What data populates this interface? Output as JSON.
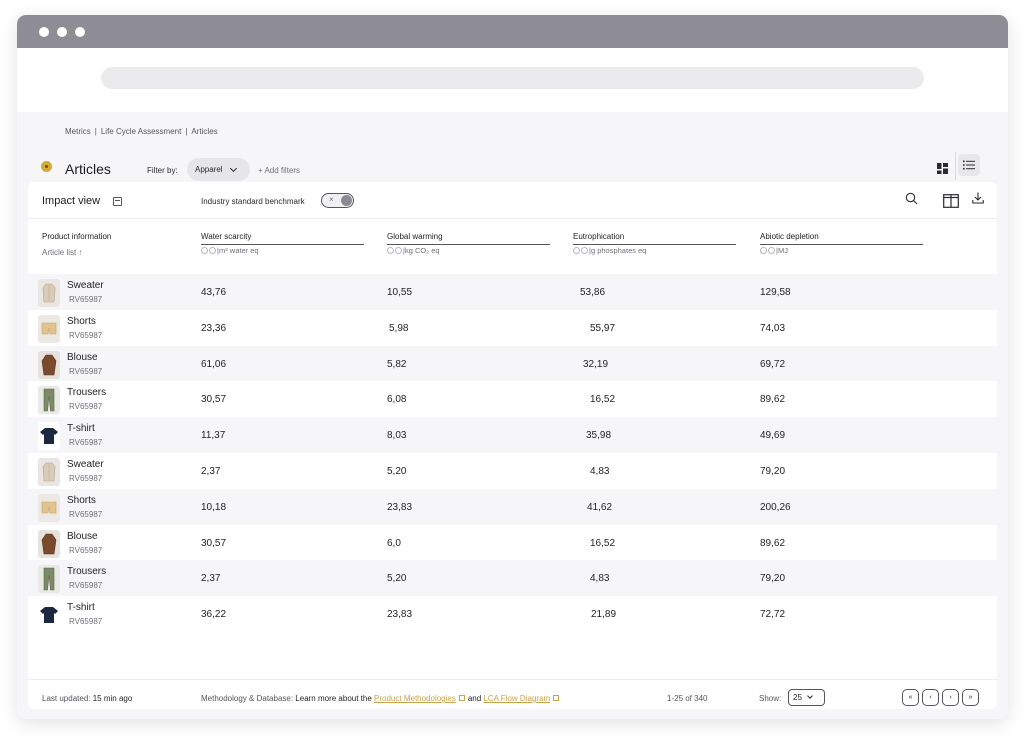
{
  "breadcrumb": [
    "Metrics",
    "Life Cycle Assessment",
    "Articles"
  ],
  "page_title": "Articles",
  "filter": {
    "label": "Filter by:",
    "value": "Apparel",
    "add": "+ Add filters"
  },
  "toolbar": {
    "view_label": "Impact view",
    "benchmark_label": "Industry standard benchmark",
    "toggle_state": "off",
    "toggle_mark": "×"
  },
  "columns": {
    "product": {
      "title": "Product information",
      "sub": "Article list",
      "sort": "↑"
    },
    "metrics": [
      {
        "name": "Water scarcity",
        "unit": "|m³ water eq"
      },
      {
        "name": "Global warming",
        "unit": "|kg CO₂ eq"
      },
      {
        "name": "Eutrophication",
        "unit": "|g phosphates eq"
      },
      {
        "name": "Abiotic depletion",
        "unit": "|MJ"
      }
    ]
  },
  "rows": [
    {
      "name": "Sweater",
      "code": "RV65987",
      "thumb": "sweater",
      "values": [
        "43,76",
        "10,55",
        "53,86",
        "129,58"
      ]
    },
    {
      "name": "Shorts",
      "code": "RV65987",
      "thumb": "shorts",
      "values": [
        "23,36",
        "5,98",
        "55,97",
        "74,03"
      ]
    },
    {
      "name": "Blouse",
      "code": "RV65987",
      "thumb": "blouse",
      "values": [
        "61,06",
        "5,82",
        "32,19",
        "69,72"
      ]
    },
    {
      "name": "Trousers",
      "code": "RV65987",
      "thumb": "trousers",
      "values": [
        "30,57",
        "6,08",
        "16,52",
        "89,62"
      ]
    },
    {
      "name": "T-shirt",
      "code": "RV65987",
      "thumb": "tshirt",
      "values": [
        "11,37",
        "8,03",
        "35,98",
        "49,69"
      ]
    },
    {
      "name": "Sweater",
      "code": "RV65987",
      "thumb": "sweater",
      "values": [
        "2,37",
        "5,20",
        "4,83",
        "79,20"
      ]
    },
    {
      "name": "Shorts",
      "code": "RV65987",
      "thumb": "shorts",
      "values": [
        "10,18",
        "23,83",
        "41,62",
        "200,26"
      ]
    },
    {
      "name": "Blouse",
      "code": "RV65987",
      "thumb": "blouse",
      "values": [
        "30,57",
        "6,0",
        "16,52",
        "89,62"
      ]
    },
    {
      "name": "Trousers",
      "code": "RV65987",
      "thumb": "trousers",
      "values": [
        "2,37",
        "5,20",
        "4,83",
        "79,20"
      ]
    },
    {
      "name": "T-shirt",
      "code": "RV65987",
      "thumb": "tshirt",
      "values": [
        "36,22",
        "23,83",
        "21,89",
        "72,72"
      ]
    }
  ],
  "footer": {
    "updated_label": "Last updated:",
    "updated_value": "15 min ago",
    "method_label": "Methodology & Database:",
    "method_text": "Learn more about the",
    "link1": "Product Methodologies",
    "and": "and",
    "link2": "LCA Flow Diagram",
    "range": "1-25 of 340",
    "show_label": "Show:",
    "show_value": "25",
    "pager": [
      "«",
      "‹",
      "›",
      "»"
    ]
  },
  "colors": {
    "accent": "#c9a24a",
    "title_dot": "#d4a93a",
    "titlebar": "#8e8d96",
    "row_alt": "#f6f6f8"
  }
}
